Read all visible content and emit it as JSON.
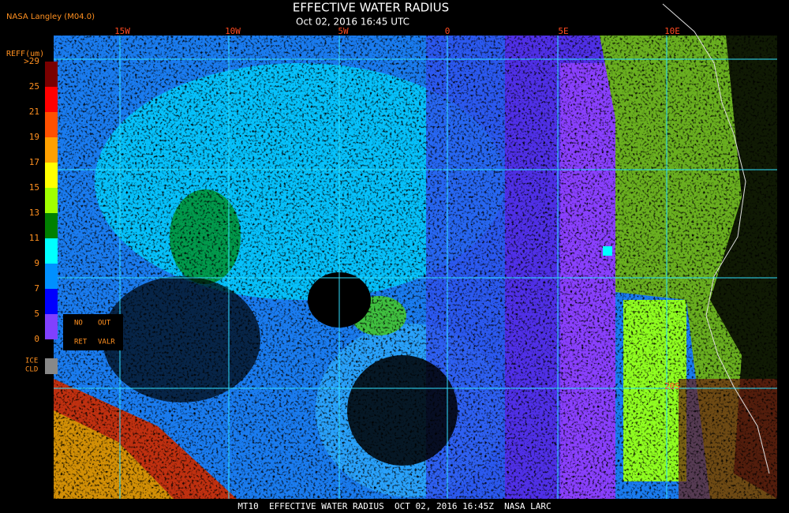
{
  "header": {
    "source": "NASA Langley (M04.0)",
    "title": "EFFECTIVE WATER RADIUS",
    "subtitle": "Oct 02, 2016 16:45 UTC"
  },
  "longitude_labels": [
    "15W",
    "10W",
    "5W",
    "0",
    "5E",
    "10E"
  ],
  "latitude_labels": [
    "20S"
  ],
  "legend": {
    "title": "REFF(um)",
    "ticks": [
      ">29",
      "25",
      "21",
      "19",
      "17",
      "15",
      "13",
      "11",
      "9",
      "7",
      "5",
      "0"
    ],
    "colors": [
      "#7a0000",
      "#ff0000",
      "#ff5000",
      "#ffa000",
      "#ffff00",
      "#a0ff00",
      "#008000",
      "#00ffff",
      "#0090ff",
      "#0000ff",
      "#8040ff"
    ],
    "no_retrieval": [
      "NO",
      "RET"
    ],
    "out_of_range": [
      "OUT",
      "VALR"
    ],
    "ice_cloud": [
      "ICE",
      "CLD"
    ]
  },
  "footer": "MT10  EFFECTIVE WATER RADIUS  OCT 02, 2016 16:45Z  NASA LARC"
}
